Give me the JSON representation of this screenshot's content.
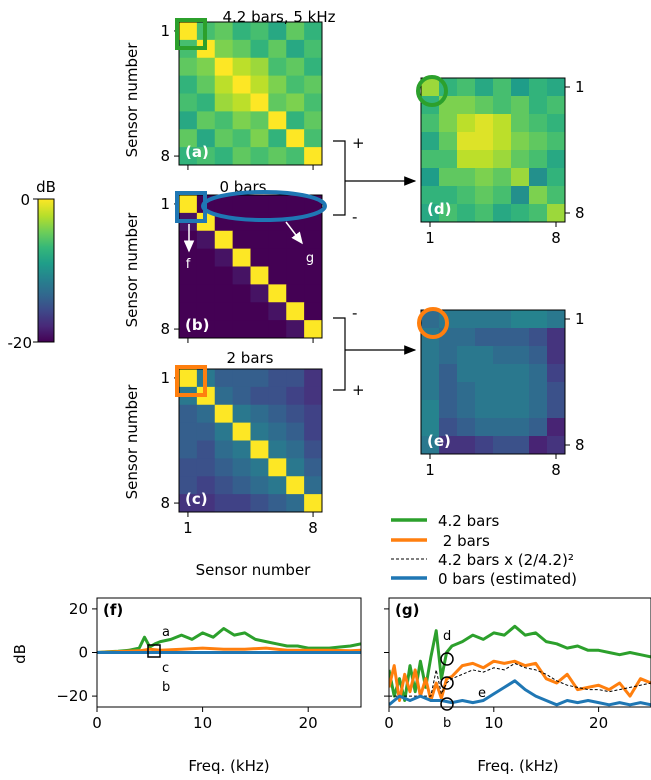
{
  "colors": {
    "viridis": [
      "#440154",
      "#482878",
      "#3e4989",
      "#31688e",
      "#26828e",
      "#1f9e89",
      "#35b779",
      "#6ece58",
      "#b5de2b",
      "#fde725"
    ],
    "series_42": "#2ca02c",
    "series_2": "#ff7f0e",
    "series_0": "#1f77b4",
    "series_scaled": "#000000"
  },
  "colorbar": {
    "unit": "dB",
    "top_label": "0",
    "bottom_label": "-20",
    "range": [
      -20,
      0
    ]
  },
  "matrices": {
    "a": {
      "panel": "(a)",
      "title": "4.2 bars, 5 kHz",
      "ylabel": "Sensor number",
      "yticks": [
        "1",
        "8"
      ],
      "values": [
        [
          0,
          -6,
          -5,
          -7,
          -6,
          -8,
          -5,
          -7
        ],
        [
          -6,
          0,
          -4,
          -5,
          -7,
          -5,
          -8,
          -6
        ],
        [
          -5,
          -4,
          0,
          -2,
          -3,
          -6,
          -5,
          -7
        ],
        [
          -7,
          -5,
          -2,
          0,
          -2,
          -4,
          -6,
          -5
        ],
        [
          -6,
          -7,
          -3,
          -2,
          0,
          -5,
          -4,
          -6
        ],
        [
          -8,
          -5,
          -6,
          -4,
          -5,
          0,
          -7,
          -5
        ],
        [
          -5,
          -8,
          -5,
          -6,
          -4,
          -7,
          0,
          -6
        ],
        [
          -7,
          -6,
          -7,
          -5,
          -6,
          -5,
          -6,
          0
        ]
      ]
    },
    "b": {
      "panel": "(b)",
      "title": "0 bars",
      "ylabel": "Sensor number",
      "yticks": [
        "1",
        "8"
      ],
      "values": [
        [
          0,
          -20,
          -20,
          -20,
          -20,
          -20,
          -20,
          -20
        ],
        [
          -19,
          0,
          -20,
          -20,
          -20,
          -20,
          -20,
          -20
        ],
        [
          -20,
          -19,
          0,
          -20,
          -20,
          -20,
          -20,
          -20
        ],
        [
          -20,
          -20,
          -19,
          0,
          -20,
          -20,
          -20,
          -20
        ],
        [
          -20,
          -20,
          -20,
          -19,
          0,
          -20,
          -20,
          -20
        ],
        [
          -20,
          -20,
          -20,
          -20,
          -19,
          0,
          -20,
          -20
        ],
        [
          -20,
          -20,
          -20,
          -20,
          -20,
          -19,
          0,
          -20
        ],
        [
          -20,
          -20,
          -20,
          -20,
          -20,
          -20,
          -19,
          0
        ]
      ]
    },
    "c": {
      "panel": "(c)",
      "title": "2 bars",
      "ylabel": "Sensor number",
      "yticks": [
        "1",
        "8"
      ],
      "xticks": [
        "1",
        "8"
      ],
      "xlabel": "Sensor number",
      "values": [
        [
          0,
          -12,
          -14,
          -14,
          -14,
          -15,
          -15,
          -17
        ],
        [
          -12,
          0,
          -13,
          -14,
          -15,
          -15,
          -16,
          -17
        ],
        [
          -14,
          -13,
          0,
          -12,
          -13,
          -14,
          -15,
          -16
        ],
        [
          -14,
          -14,
          -12,
          0,
          -12,
          -13,
          -14,
          -16
        ],
        [
          -14,
          -15,
          -13,
          -12,
          0,
          -12,
          -13,
          -15
        ],
        [
          -15,
          -15,
          -14,
          -13,
          -12,
          0,
          -12,
          -14
        ],
        [
          -15,
          -16,
          -15,
          -14,
          -13,
          -12,
          0,
          -13
        ],
        [
          -17,
          -17,
          -16,
          -16,
          -15,
          -14,
          -13,
          0
        ]
      ]
    },
    "d": {
      "panel": "(d)",
      "yticks": [
        "1",
        "8"
      ],
      "xticks": [
        "1",
        "8"
      ],
      "values": [
        [
          -3,
          -7,
          -6,
          -8,
          -6,
          -9,
          -7,
          -8
        ],
        [
          -7,
          -4,
          -4,
          -5,
          -6,
          -5,
          -7,
          -6
        ],
        [
          -6,
          -4,
          -2,
          -1,
          -2,
          -5,
          -6,
          -7
        ],
        [
          -8,
          -5,
          -1,
          -1,
          -2,
          -4,
          -5,
          -6
        ],
        [
          -6,
          -6,
          -2,
          -2,
          -3,
          -5,
          -6,
          -8
        ],
        [
          -9,
          -5,
          -5,
          -4,
          -5,
          -3,
          -10,
          -7
        ],
        [
          -7,
          -7,
          -6,
          -5,
          -6,
          -10,
          -4,
          -6
        ],
        [
          -8,
          -6,
          -7,
          -6,
          -8,
          -7,
          -6,
          -3
        ]
      ]
    },
    "e": {
      "panel": "(e)",
      "yticks": [
        "1",
        "8"
      ],
      "xticks": [
        "1",
        "8"
      ],
      "values": [
        [
          -13,
          -12,
          -12,
          -12,
          -12,
          -11,
          -11,
          -12
        ],
        [
          -12,
          -13,
          -13,
          -14,
          -14,
          -14,
          -15,
          -17
        ],
        [
          -12,
          -13,
          -12,
          -12,
          -13,
          -13,
          -14,
          -17
        ],
        [
          -12,
          -14,
          -12,
          -12,
          -12,
          -12,
          -13,
          -16
        ],
        [
          -12,
          -14,
          -13,
          -12,
          -12,
          -12,
          -13,
          -15
        ],
        [
          -11,
          -14,
          -13,
          -12,
          -12,
          -12,
          -13,
          -15
        ],
        [
          -11,
          -15,
          -14,
          -13,
          -13,
          -13,
          -14,
          -18
        ],
        [
          -12,
          -17,
          -17,
          -16,
          -15,
          -15,
          -18,
          -17
        ]
      ]
    }
  },
  "connectors": {
    "plus": "+",
    "minus": "-"
  },
  "markers": {
    "f": "f",
    "g": "g"
  },
  "chart_data": [
    {
      "type": "line",
      "panel": "(f)",
      "xlabel": "Freq. (kHz)",
      "ylabel": "dB",
      "xlim": [
        0,
        25
      ],
      "ylim": [
        -25,
        25
      ],
      "xticks": [
        "0",
        "10",
        "20"
      ],
      "yticks": [
        "20",
        "0",
        "−20"
      ],
      "annotations": [
        "a",
        "c",
        "b"
      ],
      "series": [
        {
          "key": "s42",
          "x": [
            0,
            1,
            2,
            3,
            4,
            4.5,
            5,
            5.5,
            6,
            7,
            8,
            9,
            10,
            11,
            12,
            13,
            14,
            15,
            16,
            17,
            18,
            19,
            20,
            21,
            22,
            23,
            24,
            25
          ],
          "y": [
            0,
            0.3,
            0.6,
            1,
            2,
            7,
            2.5,
            4,
            5,
            6,
            8,
            6,
            9,
            7,
            11,
            8,
            9,
            6,
            5,
            4,
            3,
            3,
            2,
            2,
            2,
            2.5,
            3,
            4
          ]
        },
        {
          "key": "s2",
          "x": [
            0,
            2,
            4,
            5,
            6,
            8,
            10,
            12,
            14,
            16,
            18,
            20,
            22,
            24,
            25
          ],
          "y": [
            0,
            0.4,
            0.8,
            1.5,
            1,
            1.5,
            2,
            1.5,
            1.5,
            2,
            1,
            1,
            1,
            0.8,
            1
          ]
        },
        {
          "key": "s0",
          "x": [
            0,
            5,
            10,
            15,
            20,
            25
          ],
          "y": [
            0,
            0,
            0,
            0,
            0,
            0
          ]
        }
      ]
    },
    {
      "type": "line",
      "panel": "(g)",
      "xlabel": "Freq. (kHz)",
      "xlim": [
        0,
        25
      ],
      "ylim": [
        -25,
        25
      ],
      "xticks": [
        "0",
        "10",
        "20"
      ],
      "annotations": [
        "d",
        "a",
        "e",
        "b"
      ],
      "series": [
        {
          "key": "s42",
          "x": [
            0,
            0.5,
            1,
            1.5,
            2,
            2.5,
            3,
            3.5,
            4,
            4.5,
            5,
            5.5,
            6,
            7,
            8,
            9,
            10,
            11,
            12,
            13,
            14,
            15,
            16,
            17,
            18,
            19,
            20,
            21,
            22,
            23,
            24,
            25
          ],
          "y": [
            -8,
            -20,
            -12,
            -22,
            -6,
            -18,
            -4,
            -16,
            -2,
            10,
            -12,
            0,
            3,
            5,
            8,
            6,
            9,
            8,
            12,
            8,
            9,
            5,
            4,
            2,
            3,
            1,
            1,
            0,
            -1,
            0,
            -1,
            -2
          ]
        },
        {
          "key": "s2",
          "x": [
            0,
            0.5,
            1,
            1.5,
            2,
            2.5,
            3,
            3.5,
            4,
            4.5,
            5,
            5.5,
            6,
            7,
            8,
            9,
            10,
            11,
            12,
            13,
            14,
            15,
            16,
            17,
            18,
            19,
            20,
            21,
            22,
            23,
            24,
            25
          ],
          "y": [
            -16,
            -6,
            -22,
            -10,
            -18,
            -8,
            -20,
            -12,
            -22,
            -14,
            -21,
            -12,
            -11,
            -6,
            -5,
            -7,
            -4,
            -5,
            -4,
            -6,
            -5,
            -12,
            -14,
            -10,
            -17,
            -16,
            -15,
            -17,
            -14,
            -20,
            -12,
            -14
          ]
        },
        {
          "key": "scaled",
          "x": [
            0,
            1,
            2,
            3,
            4,
            4.5,
            5,
            5.5,
            6,
            7,
            8,
            9,
            10,
            11,
            12,
            13,
            14,
            15,
            16,
            17,
            18,
            19,
            20,
            21,
            22,
            23,
            24,
            25
          ],
          "y": [
            -20,
            -20,
            -20,
            -20,
            -20,
            -8,
            -19,
            -14,
            -12,
            -10,
            -8,
            -9,
            -7,
            -8,
            -5,
            -7,
            -8,
            -10,
            -13,
            -15,
            -16,
            -17,
            -17,
            -18,
            -17,
            -16,
            -15,
            -14
          ]
        },
        {
          "key": "s0",
          "x": [
            0,
            1,
            2,
            3,
            4,
            5,
            6,
            7,
            8,
            9,
            10,
            11,
            12,
            13,
            14,
            15,
            16,
            17,
            18,
            19,
            20,
            21,
            22,
            23,
            24,
            25
          ],
          "y": [
            -24,
            -20,
            -22,
            -20,
            -22,
            -22,
            -23,
            -22,
            -23,
            -22,
            -19,
            -16,
            -13,
            -17,
            -20,
            -22,
            -24,
            -22,
            -23,
            -22,
            -23,
            -24,
            -23,
            -24,
            -23,
            -24
          ]
        }
      ]
    }
  ],
  "legend": [
    {
      "key": "s42",
      "label": "4.2 bars"
    },
    {
      "key": "s2",
      "label": " 2 bars"
    },
    {
      "key": "scaled",
      "label": "4.2 bars x (2/4.2)²"
    },
    {
      "key": "s0",
      "label": "0 bars (estimated)"
    }
  ]
}
